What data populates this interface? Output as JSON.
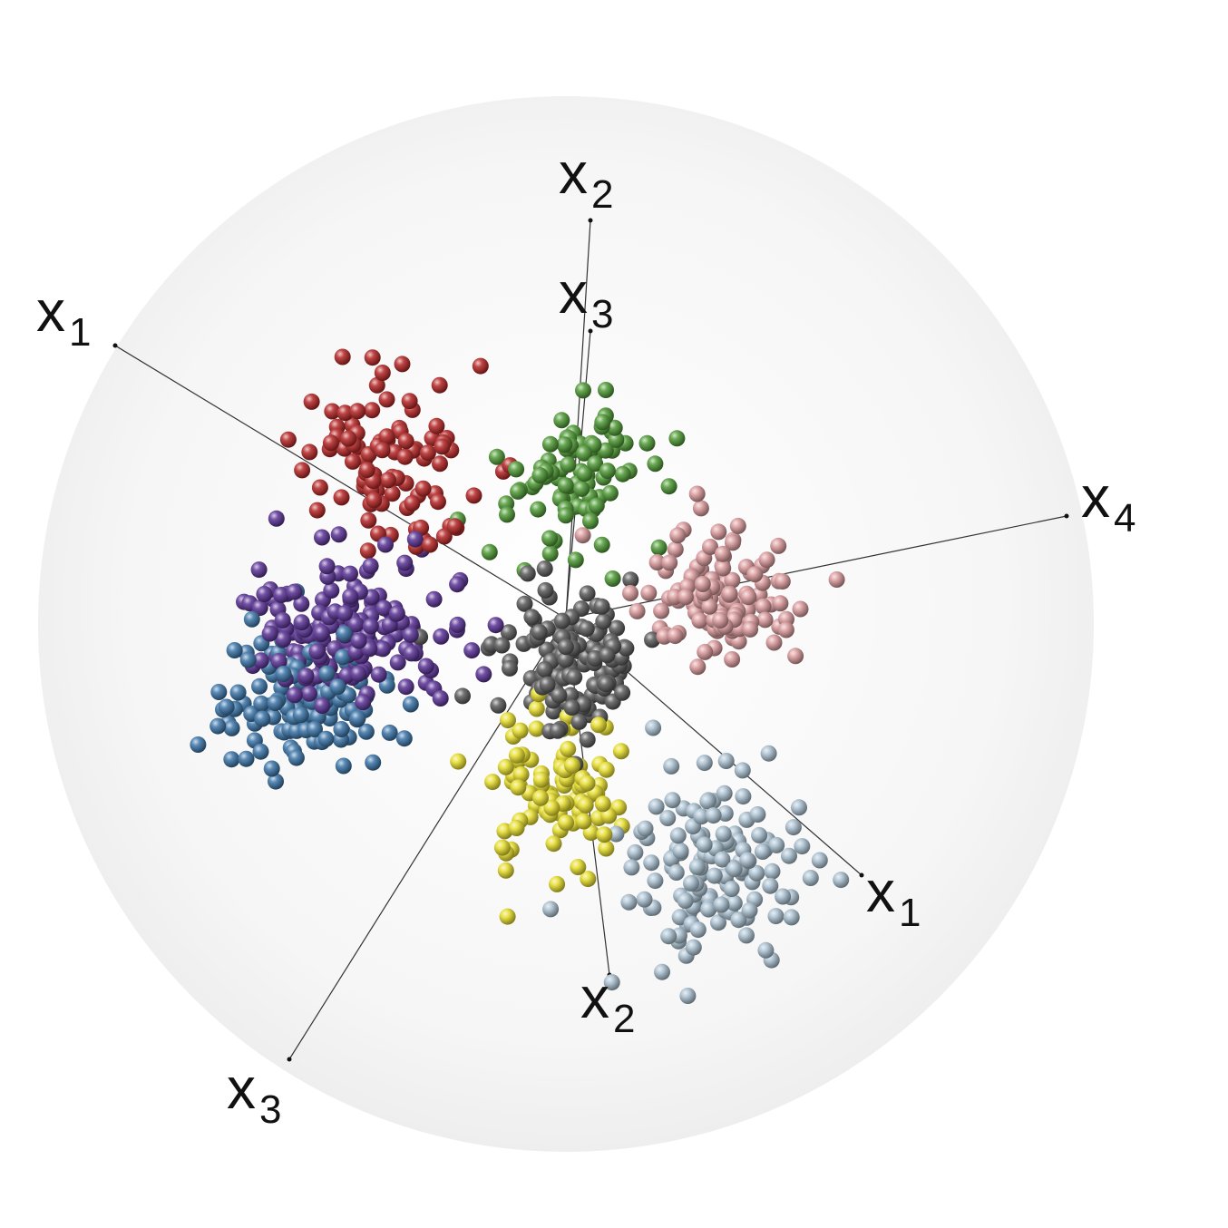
{
  "chart_data": {
    "type": "scatter",
    "projection": "3D scatter of clusters on a spherical background with projected axes",
    "axes": [
      {
        "label": "x",
        "sub": "1",
        "end": "upper-left"
      },
      {
        "label": "x",
        "sub": "1",
        "end": "lower-right"
      },
      {
        "label": "x",
        "sub": "2",
        "end": "top"
      },
      {
        "label": "x",
        "sub": "2",
        "end": "bottom"
      },
      {
        "label": "x",
        "sub": "3",
        "end": "top"
      },
      {
        "label": "x",
        "sub": "3",
        "end": "lower-left"
      },
      {
        "label": "x",
        "sub": "4",
        "end": "right"
      }
    ],
    "clusters": [
      {
        "color": "#b52424",
        "count": 95,
        "center": "upper-left"
      },
      {
        "color": "#4f9a35",
        "count": 90,
        "center": "upper-center"
      },
      {
        "color": "#d9999b",
        "count": 110,
        "center": "right"
      },
      {
        "color": "#595959",
        "count": 140,
        "center": "center"
      },
      {
        "color": "#5a3296",
        "count": 180,
        "center": "left"
      },
      {
        "color": "#3a74a8",
        "count": 120,
        "center": "left-lower"
      },
      {
        "color": "#e6dd2a",
        "count": 95,
        "center": "lower-center"
      },
      {
        "color": "#a9c0d0",
        "count": 140,
        "center": "lower-right"
      }
    ]
  }
}
